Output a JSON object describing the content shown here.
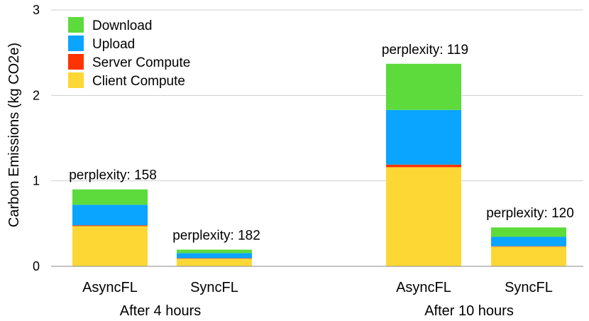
{
  "chart_data": {
    "type": "bar",
    "stacked": true,
    "title": "",
    "xlabel": "",
    "ylabel": "Carbon Emissions (kg CO2e)",
    "ylim": [
      0,
      3
    ],
    "yticks": [
      0,
      1,
      2,
      3
    ],
    "grid": true,
    "legend_position": "top-left",
    "groups": [
      {
        "label": "After 4 hours",
        "categories": [
          "AsyncFL",
          "SyncFL"
        ]
      },
      {
        "label": "After 10 hours",
        "categories": [
          "AsyncFL",
          "SyncFL"
        ]
      }
    ],
    "categories": [
      "AsyncFL",
      "SyncFL",
      "AsyncFL",
      "SyncFL"
    ],
    "series": [
      {
        "name": "Client Compute",
        "color": "#FDD835",
        "values": [
          0.47,
          0.09,
          1.16,
          0.23
        ]
      },
      {
        "name": "Server Compute",
        "color": "#FF3300",
        "values": [
          0.01,
          0.005,
          0.03,
          0.005
        ]
      },
      {
        "name": "Upload",
        "color": "#0AA5FF",
        "values": [
          0.24,
          0.06,
          0.64,
          0.11
        ]
      },
      {
        "name": "Download",
        "color": "#5DDB3C",
        "values": [
          0.18,
          0.04,
          0.54,
          0.11
        ]
      }
    ],
    "legend_order": [
      "Download",
      "Upload",
      "Server Compute",
      "Client Compute"
    ],
    "annotations": [
      "perplexity: 158",
      "perplexity: 182",
      "perplexity: 119",
      "perplexity: 120"
    ]
  }
}
